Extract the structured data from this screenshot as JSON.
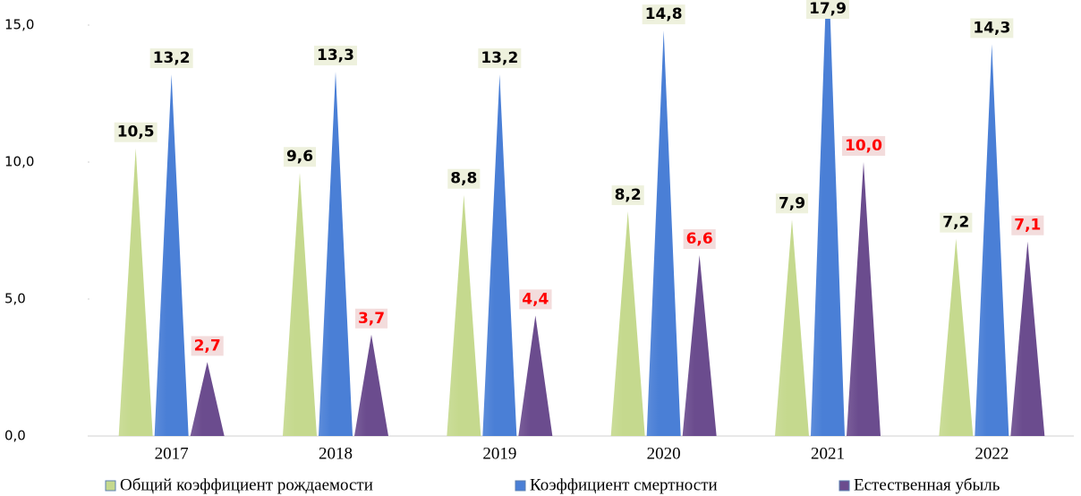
{
  "chart_data": {
    "type": "cone-bar",
    "categories": [
      "2017",
      "2018",
      "2019",
      "2020",
      "2021",
      "2022"
    ],
    "series": [
      {
        "name": "Общий коэффициент рождаемости",
        "color": "#c5d98e",
        "label_color": "#000000",
        "values": [
          10.5,
          9.6,
          8.8,
          8.2,
          7.9,
          7.2
        ],
        "value_labels": [
          "10,5",
          "9,6",
          "8,8",
          "8,2",
          "7,9",
          "7,2"
        ]
      },
      {
        "name": "Коэффициент смертности",
        "color": "#4a7fd6",
        "label_color": "#000000",
        "values": [
          13.2,
          13.3,
          13.2,
          14.8,
          17.9,
          14.3
        ],
        "value_labels": [
          "13,2",
          "13,3",
          "13,2",
          "14,8",
          "17,9",
          "14,3"
        ]
      },
      {
        "name": "Естественная убыль",
        "color": "#6b4c8e",
        "label_color": "#ff0000",
        "values": [
          2.7,
          3.7,
          4.4,
          6.6,
          10.0,
          7.1
        ],
        "value_labels": [
          "2,7",
          "3,7",
          "4,4",
          "6,6",
          "10,0",
          "7,1"
        ]
      }
    ],
    "ylim": [
      0,
      15
    ],
    "yticks": [
      {
        "value": 0,
        "label": "0,0"
      },
      {
        "value": 5,
        "label": "5,0"
      },
      {
        "value": 10,
        "label": "10,0"
      },
      {
        "value": 15,
        "label": "15,0"
      }
    ],
    "grid": false,
    "legend": "bottom"
  }
}
